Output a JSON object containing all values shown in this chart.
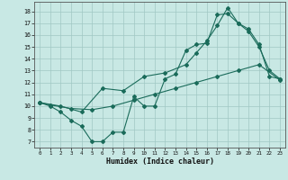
{
  "xlabel": "Humidex (Indice chaleur)",
  "xlim": [
    -0.5,
    23.5
  ],
  "ylim": [
    6.5,
    18.8
  ],
  "xticks": [
    0,
    1,
    2,
    3,
    4,
    5,
    6,
    7,
    8,
    9,
    10,
    11,
    12,
    13,
    14,
    15,
    16,
    17,
    18,
    19,
    20,
    21,
    22,
    23
  ],
  "yticks": [
    7,
    8,
    9,
    10,
    11,
    12,
    13,
    14,
    15,
    16,
    17,
    18
  ],
  "bg_color": "#c8e8e4",
  "line_color": "#1a6b5a",
  "grid_color": "#a0c8c4",
  "line1_x": [
    0,
    1,
    2,
    3,
    4,
    5,
    6,
    7,
    8,
    9,
    10,
    11,
    12,
    13,
    14,
    15,
    16,
    17,
    18,
    19,
    20,
    21,
    22,
    23
  ],
  "line1_y": [
    10.3,
    10.0,
    9.5,
    8.8,
    8.3,
    7.0,
    7.0,
    7.8,
    7.8,
    10.8,
    10.0,
    10.0,
    12.3,
    12.7,
    14.7,
    15.2,
    15.3,
    17.7,
    17.8,
    17.0,
    16.3,
    15.0,
    13.0,
    12.3
  ],
  "line2_x": [
    0,
    1,
    3,
    5,
    7,
    9,
    11,
    13,
    15,
    17,
    19,
    21,
    23
  ],
  "line2_y": [
    10.3,
    10.1,
    9.8,
    9.7,
    10.0,
    10.5,
    11.0,
    11.5,
    12.0,
    12.5,
    13.0,
    13.5,
    12.2
  ],
  "line3_x": [
    0,
    2,
    4,
    6,
    8,
    10,
    12,
    14,
    15,
    16,
    17,
    18,
    19,
    20,
    21,
    22,
    23
  ],
  "line3_y": [
    10.3,
    10.0,
    9.5,
    11.5,
    11.3,
    12.5,
    12.8,
    13.5,
    14.5,
    15.5,
    16.8,
    18.3,
    17.0,
    16.5,
    15.2,
    12.5,
    12.3
  ]
}
